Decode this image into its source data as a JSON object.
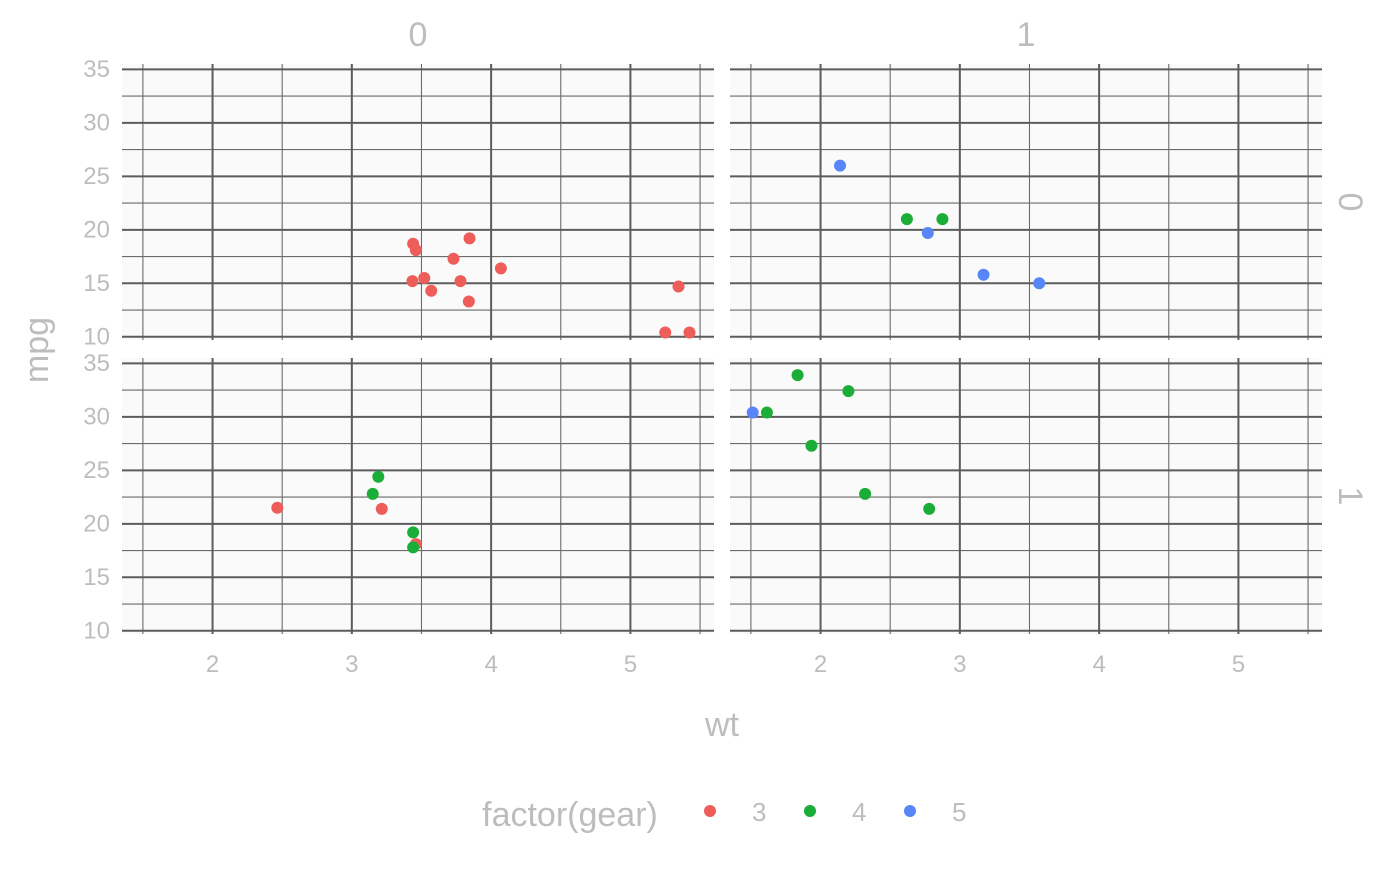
{
  "chart_data": {
    "type": "scatter",
    "facet_rows_label": "",
    "facet_cols_label": "",
    "col_strips": [
      "0",
      "1"
    ],
    "row_strips": [
      "0",
      "1"
    ],
    "xlabel": "wt",
    "ylabel": "mpg",
    "xlim": [
      1.35,
      5.6
    ],
    "ylim": [
      9.7,
      35.5
    ],
    "x_ticks": [
      2,
      3,
      4,
      5
    ],
    "x_tick_labels": [
      "2",
      "3",
      "4",
      "5"
    ],
    "y_ticks": [
      10,
      15,
      20,
      25,
      30,
      35
    ],
    "y_tick_labels": [
      "10",
      "15",
      "20",
      "25",
      "30",
      "35"
    ],
    "grid": true,
    "legend": {
      "title": "factor(gear)",
      "position": "bottom",
      "entries": [
        {
          "label": "3",
          "color": "#ee5d5a"
        },
        {
          "label": "4",
          "color": "#1aad37"
        },
        {
          "label": "5",
          "color": "#5886f6"
        }
      ]
    },
    "panels": [
      {
        "row": 0,
        "col": 0,
        "points": [
          {
            "x": 3.44,
            "y": 18.7,
            "gear": "3"
          },
          {
            "x": 3.46,
            "y": 18.1,
            "gear": "3"
          },
          {
            "x": 3.57,
            "y": 14.3,
            "gear": "3"
          },
          {
            "x": 4.07,
            "y": 16.4,
            "gear": "3"
          },
          {
            "x": 3.73,
            "y": 17.3,
            "gear": "3"
          },
          {
            "x": 3.78,
            "y": 15.2,
            "gear": "3"
          },
          {
            "x": 5.25,
            "y": 10.4,
            "gear": "3"
          },
          {
            "x": 5.424,
            "y": 10.4,
            "gear": "3"
          },
          {
            "x": 5.345,
            "y": 14.7,
            "gear": "3"
          },
          {
            "x": 3.52,
            "y": 15.5,
            "gear": "3"
          },
          {
            "x": 3.435,
            "y": 15.2,
            "gear": "3"
          },
          {
            "x": 3.84,
            "y": 13.3,
            "gear": "3"
          },
          {
            "x": 3.845,
            "y": 19.2,
            "gear": "3"
          }
        ]
      },
      {
        "row": 0,
        "col": 1,
        "points": [
          {
            "x": 2.62,
            "y": 21.0,
            "gear": "4"
          },
          {
            "x": 2.875,
            "y": 21.0,
            "gear": "4"
          },
          {
            "x": 2.14,
            "y": 26.0,
            "gear": "5"
          },
          {
            "x": 3.17,
            "y": 15.8,
            "gear": "5"
          },
          {
            "x": 2.77,
            "y": 19.7,
            "gear": "5"
          },
          {
            "x": 3.57,
            "y": 15.0,
            "gear": "5"
          }
        ]
      },
      {
        "row": 1,
        "col": 0,
        "points": [
          {
            "x": 3.215,
            "y": 21.4,
            "gear": "3"
          },
          {
            "x": 3.46,
            "y": 18.1,
            "gear": "3"
          },
          {
            "x": 2.465,
            "y": 21.5,
            "gear": "3"
          },
          {
            "x": 3.19,
            "y": 24.4,
            "gear": "4"
          },
          {
            "x": 3.15,
            "y": 22.8,
            "gear": "4"
          },
          {
            "x": 3.44,
            "y": 19.2,
            "gear": "4"
          },
          {
            "x": 3.44,
            "y": 17.8,
            "gear": "4"
          }
        ]
      },
      {
        "row": 1,
        "col": 1,
        "points": [
          {
            "x": 2.32,
            "y": 22.8,
            "gear": "4"
          },
          {
            "x": 2.2,
            "y": 32.4,
            "gear": "4"
          },
          {
            "x": 1.615,
            "y": 30.4,
            "gear": "4"
          },
          {
            "x": 1.835,
            "y": 33.9,
            "gear": "4"
          },
          {
            "x": 1.935,
            "y": 27.3,
            "gear": "4"
          },
          {
            "x": 2.78,
            "y": 21.4,
            "gear": "4"
          },
          {
            "x": 1.513,
            "y": 30.4,
            "gear": "5"
          }
        ]
      }
    ]
  }
}
